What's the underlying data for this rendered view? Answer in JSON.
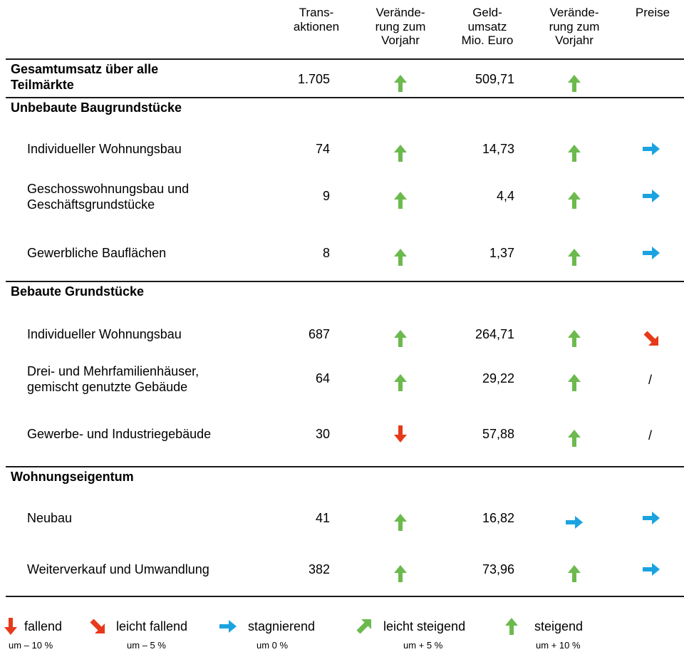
{
  "header": {
    "transactions": "Trans-\naktionen",
    "change1": "Verände-\nrung zum\nVorjahr",
    "volume": "Geld-\numsatz\nMio. Euro",
    "change2": "Verände-\nrung zum\nVorjahr",
    "prices": "Preise"
  },
  "total": {
    "label": "Gesamtumsatz über alle\nTeilmärkte",
    "transactions": "1.705",
    "change1": "steigend",
    "volume": "509,71",
    "change2": "steigend"
  },
  "sections": [
    {
      "title": "Unbebaute Baugrundstücke",
      "rows": [
        {
          "label": "Individueller Wohnungsbau",
          "transactions": "74",
          "change1": "steigend",
          "volume": "14,73",
          "change2": "steigend",
          "prices": "stagnierend"
        },
        {
          "label": "Geschosswohnungsbau und\nGeschäftsgrundstücke",
          "transactions": "9",
          "change1": "steigend",
          "volume": "4,4",
          "change2": "steigend",
          "prices": "stagnierend"
        },
        {
          "label": "Gewerbliche Bauflächen",
          "transactions": "8",
          "change1": "steigend",
          "volume": "1,37",
          "change2": "steigend",
          "prices": "stagnierend"
        }
      ]
    },
    {
      "title": "Bebaute Grundstücke",
      "rows": [
        {
          "label": "Individueller Wohnungsbau",
          "transactions": "687",
          "change1": "steigend",
          "volume": "264,71",
          "change2": "steigend",
          "prices": "leicht fallend"
        },
        {
          "label": "Drei- und Mehrfamilienhäuser,\ngemischt genutzte Gebäude",
          "transactions": "64",
          "change1": "steigend",
          "volume": "29,22",
          "change2": "steigend",
          "prices": "/"
        },
        {
          "label": "Gewerbe- und Industriegebäude",
          "transactions": "30",
          "change1": "fallend",
          "volume": "57,88",
          "change2": "steigend",
          "prices": "/"
        }
      ]
    },
    {
      "title": "Wohnungseigentum",
      "rows": [
        {
          "label": "Neubau",
          "transactions": "41",
          "change1": "steigend",
          "volume": "16,82",
          "change2": "stagnierend",
          "prices": "stagnierend"
        },
        {
          "label": "Weiterverkauf und Umwandlung",
          "transactions": "382",
          "change1": "steigend",
          "volume": "73,96",
          "change2": "steigend",
          "prices": "stagnierend"
        }
      ]
    }
  ],
  "legend": [
    {
      "trend": "fallend",
      "label": "fallend",
      "sub": "um – 10 %"
    },
    {
      "trend": "leicht fallend",
      "label": "leicht fallend",
      "sub": "um – 5 %"
    },
    {
      "trend": "stagnierend",
      "label": "stagnierend",
      "sub": "um 0 %"
    },
    {
      "trend": "leicht steigend",
      "label": "leicht steigend",
      "sub": "um + 5 %"
    },
    {
      "trend": "steigend",
      "label": "steigend",
      "sub": "um + 10 %"
    }
  ],
  "colors": {
    "steigend": "#6cba4e",
    "leicht steigend": "#6cba4e",
    "stagnierend": "#1ba3e0",
    "leicht fallend": "#e8391b",
    "fallend": "#e8391b"
  },
  "icons": {
    "steigend": "arrow-up-icon",
    "leicht steigend": "arrow-up-right-icon",
    "stagnierend": "arrow-right-icon",
    "leicht fallend": "arrow-down-right-icon",
    "fallend": "arrow-down-icon"
  }
}
